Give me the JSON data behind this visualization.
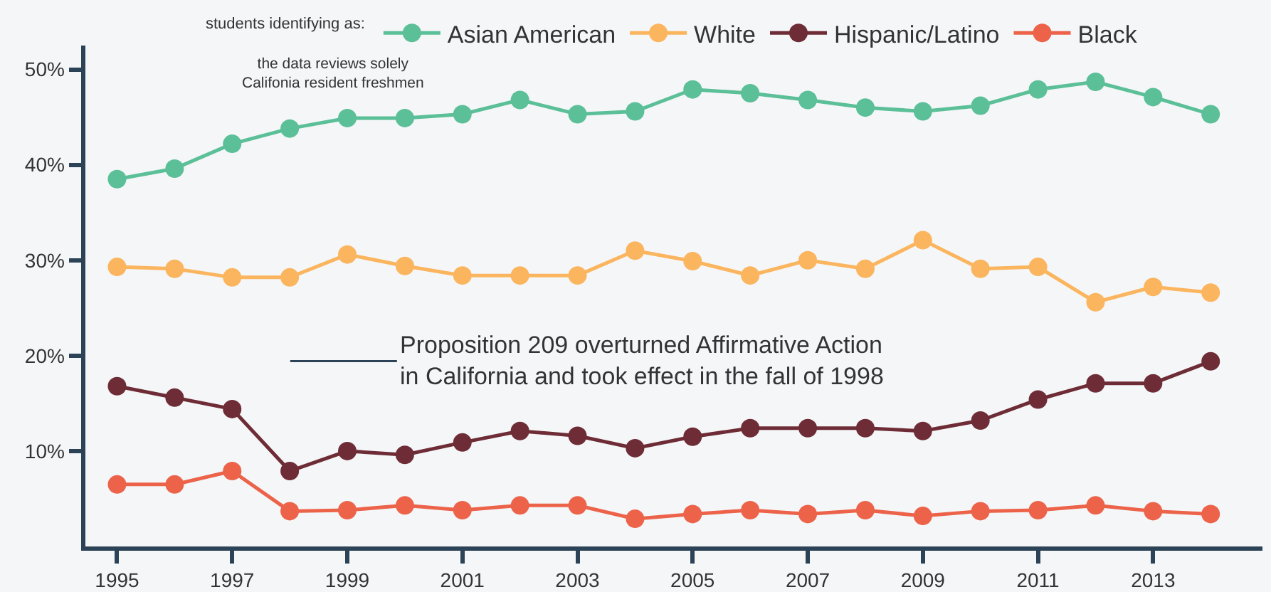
{
  "chart_data": {
    "type": "line",
    "legend_title": "students identifying as:",
    "x": [
      1995,
      1996,
      1997,
      1998,
      1999,
      2000,
      2001,
      2002,
      2003,
      2004,
      2005,
      2006,
      2007,
      2008,
      2009,
      2010,
      2011,
      2012,
      2013,
      2014
    ],
    "series": [
      {
        "name": "Asian American",
        "color": "#5bbf98",
        "values": [
          38.5,
          39.6,
          42.2,
          43.8,
          44.9,
          44.9,
          45.3,
          46.8,
          45.3,
          45.6,
          47.9,
          47.5,
          46.8,
          46.0,
          45.6,
          46.2,
          47.9,
          48.7,
          47.1,
          45.3
        ]
      },
      {
        "name": "White",
        "color": "#fbb55e",
        "values": [
          29.3,
          29.1,
          28.2,
          28.2,
          30.6,
          29.4,
          28.4,
          28.4,
          28.4,
          31.0,
          29.9,
          28.4,
          30.0,
          29.1,
          32.1,
          29.1,
          29.3,
          25.6,
          27.2,
          26.6
        ]
      },
      {
        "name": "Hispanic/Latino",
        "color": "#6e2c36",
        "values": [
          16.8,
          15.6,
          14.4,
          7.9,
          10.0,
          9.6,
          10.9,
          12.1,
          11.6,
          10.3,
          11.5,
          12.4,
          12.4,
          12.4,
          12.1,
          13.2,
          15.4,
          17.1,
          17.1,
          19.4
        ]
      },
      {
        "name": "Black",
        "color": "#ec634a",
        "values": [
          6.5,
          6.5,
          7.9,
          3.7,
          3.8,
          4.3,
          3.8,
          4.3,
          4.3,
          2.9,
          3.4,
          3.8,
          3.4,
          3.8,
          3.2,
          3.7,
          3.8,
          4.3,
          3.7,
          3.4
        ]
      }
    ],
    "annotations": [
      "the data reviews solely\nCalifonia resident freshmen",
      "Proposition 209 overturned Affirmative Action\nin California and took effect in the fall of 1998"
    ],
    "xlim": [
      1994.45,
      2014.9
    ],
    "ylim": [
      0,
      52.5
    ],
    "xticks": [
      1995,
      1997,
      1999,
      2001,
      2003,
      2005,
      2007,
      2009,
      2011,
      2013
    ],
    "yticks": [
      {
        "value": 10,
        "label": "10%"
      },
      {
        "value": 20,
        "label": "20%"
      },
      {
        "value": 30,
        "label": "30%"
      },
      {
        "value": 40,
        "label": "40%"
      },
      {
        "value": 50,
        "label": "50%"
      }
    ],
    "grid": false,
    "legend": "top",
    "marker": "circle",
    "line_style": "solid"
  }
}
